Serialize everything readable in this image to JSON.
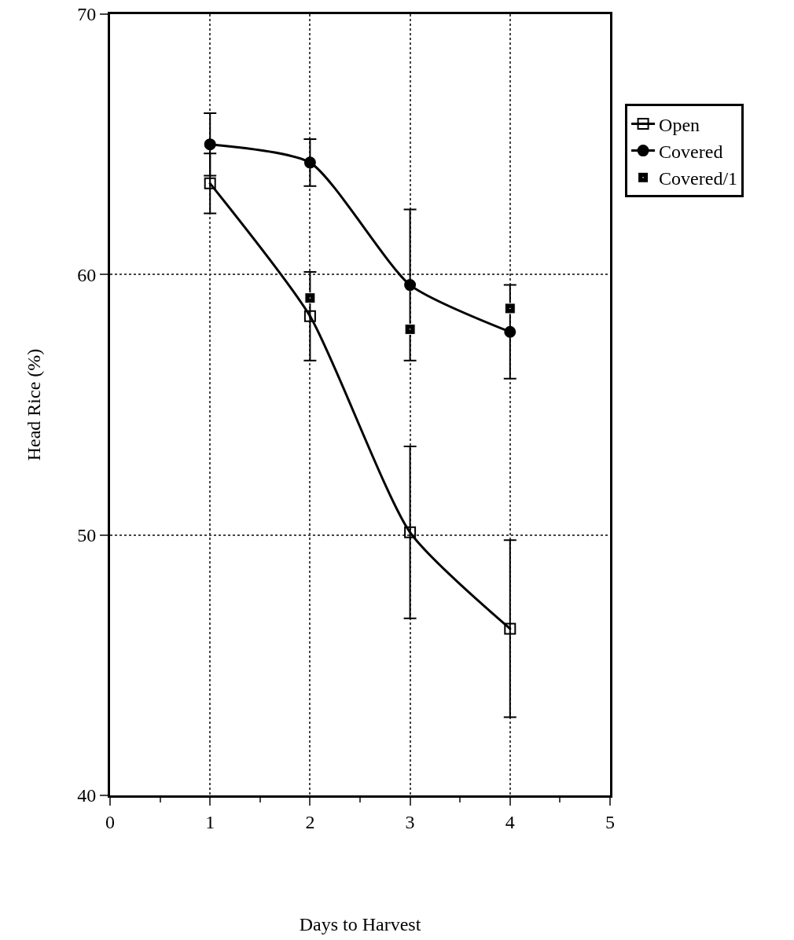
{
  "chart_data": {
    "type": "line",
    "xlabel": "Days to Harvest",
    "ylabel": "Head Rice (%)",
    "x": [
      1,
      2,
      3,
      4
    ],
    "series": [
      {
        "name": "Open",
        "color": "#000000",
        "marker": "square",
        "line_style": "solid",
        "values": [
          63.5,
          58.4,
          50.1,
          46.4
        ],
        "errors": [
          1.15,
          1.7,
          3.3,
          3.4
        ]
      },
      {
        "name": "Covered",
        "color": "#000000",
        "marker": "circle",
        "line_style": "solid",
        "values": [
          65.0,
          64.3,
          59.6,
          57.8
        ],
        "errors": [
          1.2,
          0.9,
          2.9,
          1.8
        ]
      },
      {
        "name": "Covered/1",
        "type": "scatter",
        "color": "#000000",
        "marker": "square",
        "values": [
          null,
          59.1,
          57.9,
          58.7
        ]
      }
    ],
    "xlim": [
      0,
      5
    ],
    "xticks": [
      0,
      1,
      2,
      3,
      4,
      5
    ],
    "ylim": [
      40,
      70
    ],
    "yticks": [
      40,
      50,
      60,
      70
    ],
    "grid": true,
    "legend": "top right"
  }
}
